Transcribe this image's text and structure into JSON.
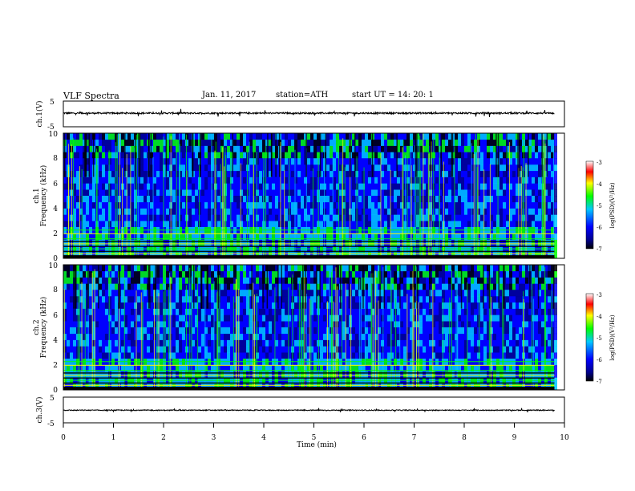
{
  "header": {
    "title": "VLF  Spectra",
    "date": "Jan. 11, 2017",
    "station": "station=ATH",
    "start": "start  UT  =   14: 20: 1"
  },
  "chart_data": [
    {
      "type": "line",
      "panel": "ch1-waveform",
      "ylabel": "ch.1(V)",
      "ylim": [
        -5,
        5
      ],
      "yticks": [
        "5",
        "-5"
      ],
      "x_range_min": [
        0,
        9.8
      ],
      "baseline_v": 0.3,
      "color": "#000000"
    },
    {
      "type": "heatmap",
      "panel": "ch1-spectrogram",
      "ylabel": "ch.1\nFrequency  (kHz)",
      "ylim": [
        0,
        10
      ],
      "yticks": [
        "0",
        "2",
        "4",
        "6",
        "8",
        "10"
      ],
      "x_range_min": [
        0,
        9.8
      ],
      "colorbar": {
        "label": "log(PSD)(V²/Hz)",
        "ticks": [
          "-3",
          "-4",
          "-5",
          "-6",
          "-7"
        ],
        "range": [
          -7,
          -3
        ]
      }
    },
    {
      "type": "heatmap",
      "panel": "ch2-spectrogram",
      "ylabel": "ch.2\nFrequency  (kHz)",
      "ylim": [
        0,
        10
      ],
      "yticks": [
        "0",
        "2",
        "4",
        "6",
        "8",
        "10"
      ],
      "x_range_min": [
        0,
        9.8
      ],
      "colorbar": {
        "label": "log(PSD)(V²/Hz)",
        "ticks": [
          "-3",
          "-4",
          "-5",
          "-6",
          "-7"
        ],
        "range": [
          -7,
          -3
        ]
      }
    },
    {
      "type": "line",
      "panel": "ch3-waveform",
      "ylabel": "ch.3(V)",
      "ylim": [
        -5,
        5
      ],
      "yticks": [
        "5",
        "-5"
      ],
      "x_range_min": [
        0,
        9.8
      ],
      "baseline_v": -0.1,
      "color": "#000000"
    }
  ],
  "xaxis": {
    "label": "Time  (min)",
    "ticks": [
      "0",
      "1",
      "2",
      "3",
      "4",
      "5",
      "6",
      "7",
      "8",
      "9",
      "10"
    ],
    "range": [
      0,
      10
    ]
  },
  "colors": {
    "dark_blue": "#00008c",
    "blue": "#0000ff",
    "cyan": "#00c8ff",
    "green": "#00ff00",
    "yellow": "#ffff00",
    "red": "#ff0000"
  }
}
